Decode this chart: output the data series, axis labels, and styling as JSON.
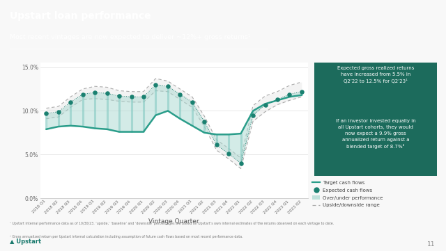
{
  "title": "Upstart loan performance",
  "subtitle": "Most recent vintages are now expected to deliver ~12%+ gross returns¹",
  "xlabel": "Vintage Quarter",
  "bg_color": "#f8f8f8",
  "header_bg": "#1a7a6e",
  "box_bg": "#1c6b5c",
  "quarters": [
    "2018\nQ1",
    "2018\nQ2",
    "2018\nQ3",
    "2018\nQ4",
    "2019\nQ1",
    "2019\nQ2",
    "2019\nQ3",
    "2019\nQ4",
    "2020\nQ1",
    "2020\nQ2",
    "2020\nQ3",
    "2020\nQ4",
    "2021\nQ1",
    "2021\nQ2",
    "2021\nQ3",
    "2021\nQ4",
    "2022\nQ1",
    "2022\nQ2",
    "2022\nQ3",
    "2022\nQ4",
    "2023\nQ1",
    "2023\nQ2"
  ],
  "target_line": [
    0.079,
    0.082,
    0.083,
    0.082,
    0.08,
    0.079,
    0.076,
    0.076,
    0.076,
    0.095,
    0.1,
    0.091,
    0.083,
    0.075,
    0.073,
    0.073,
    0.074,
    0.1,
    0.108,
    0.112,
    0.116,
    0.118
  ],
  "expected_line": [
    0.097,
    0.099,
    0.11,
    0.119,
    0.121,
    0.12,
    0.117,
    0.116,
    0.116,
    0.13,
    0.128,
    0.119,
    0.11,
    0.088,
    0.061,
    0.051,
    0.04,
    0.095,
    0.107,
    0.113,
    0.119,
    0.122
  ],
  "upside_line": [
    0.103,
    0.105,
    0.116,
    0.125,
    0.128,
    0.127,
    0.123,
    0.122,
    0.122,
    0.137,
    0.134,
    0.125,
    0.116,
    0.094,
    0.067,
    0.057,
    0.046,
    0.106,
    0.117,
    0.122,
    0.129,
    0.133
  ],
  "downside_line": [
    0.091,
    0.093,
    0.104,
    0.113,
    0.114,
    0.113,
    0.111,
    0.11,
    0.11,
    0.123,
    0.122,
    0.113,
    0.104,
    0.082,
    0.055,
    0.045,
    0.034,
    0.088,
    0.099,
    0.107,
    0.112,
    0.116
  ],
  "teal_line": "#2a9d8a",
  "teal_dot": "#1a8070",
  "fill_color": "#a8d8d0",
  "dotted_line": "#aaaaaa",
  "ylim": [
    0.0,
    0.155
  ],
  "yticks": [
    0.0,
    0.05,
    0.1,
    0.15
  ],
  "footnote1": "¹ Upstart internal performance data as of 10/30/23. ‘upside,’ ‘baseline’ and ‘downside’ percentages are based on Upstart’s own internal estimates of the returns observed on each vintage to date.",
  "footnote2": "² Gross annualized return per Upstart internal calculation including assumption of future cash flows based on most recent performance data.",
  "page_number": "11"
}
